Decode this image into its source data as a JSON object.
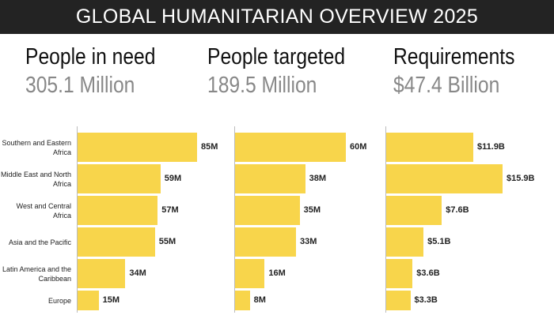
{
  "title": "GLOBAL HUMANITARIAN OVERVIEW 2025",
  "chart_data": [
    {
      "type": "bar",
      "title": "People in need",
      "subtitle": "305.1 Million",
      "color": "#f8d54b",
      "categories": [
        "Southern and Eastern Africa",
        "Middle East and North Africa",
        "West and Central Africa",
        "Asia and the Pacific",
        "Latin America and the Caribbean",
        "Europe"
      ],
      "values": [
        85,
        59,
        57,
        55,
        34,
        15
      ],
      "value_labels": [
        "85M",
        "59M",
        "57M",
        "55M",
        "34M",
        "15M"
      ]
    },
    {
      "type": "bar",
      "title": "People targeted",
      "subtitle": "189.5 Million",
      "color": "#f8d54b",
      "values": [
        60,
        38,
        35,
        33,
        16,
        8
      ],
      "value_labels": [
        "60M",
        "38M",
        "35M",
        "33M",
        "16M",
        "8M"
      ]
    },
    {
      "type": "bar",
      "title": "Requirements",
      "subtitle": "$47.4 Billion",
      "color": "#f8d54b",
      "values": [
        11.9,
        15.9,
        7.6,
        5.1,
        3.6,
        3.3
      ],
      "value_labels": [
        "$11.9B",
        "$15.9B",
        "$7.6B",
        "$5.1B",
        "$3.6B",
        "$3.3B"
      ]
    }
  ]
}
